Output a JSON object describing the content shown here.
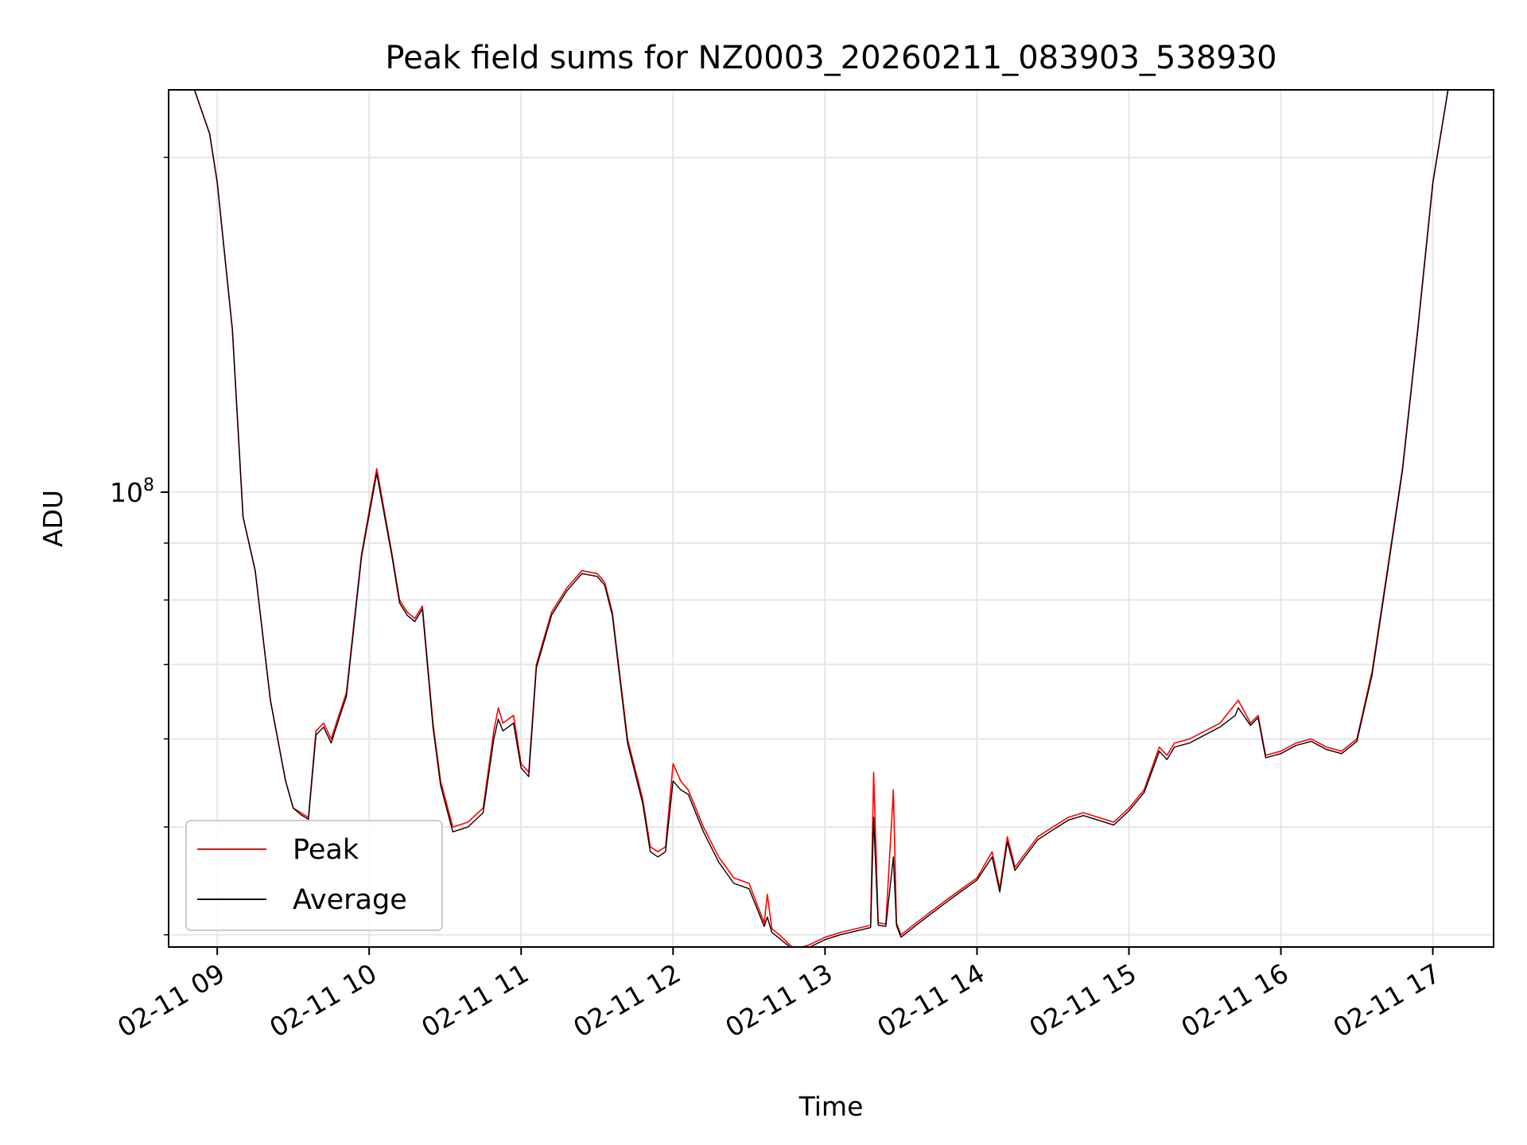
{
  "chart_data": {
    "type": "line",
    "title": "Peak field sums for NZ0003_20260211_083903_538930",
    "xlabel": "Time",
    "ylabel": "ADU",
    "yscale": "log",
    "x_tick_labels": [
      "02-11 09",
      "02-11 10",
      "02-11 11",
      "02-11 12",
      "02-11 13",
      "02-11 14",
      "02-11 15",
      "02-11 16",
      "02-11 17"
    ],
    "x_tick_hours": [
      9,
      10,
      11,
      12,
      13,
      14,
      15,
      16,
      17
    ],
    "xlim_hours": [
      8.68,
      17.4
    ],
    "y_major_tick": {
      "value": 100000000,
      "label": "10",
      "exponent": "8"
    },
    "y_minor_ticks": [
      40000000,
      50000000,
      60000000,
      70000000,
      80000000,
      90000000,
      200000000
    ],
    "ylim": [
      39000000,
      230000000
    ],
    "grid": true,
    "legend_position": "lower-left",
    "series": [
      {
        "name": "Peak",
        "color": "#ff0000",
        "x_hours": [
          8.68,
          8.85,
          8.95,
          9.0,
          9.1,
          9.17,
          9.25,
          9.35,
          9.45,
          9.5,
          9.55,
          9.6,
          9.65,
          9.7,
          9.75,
          9.8,
          9.85,
          9.95,
          10.05,
          10.15,
          10.2,
          10.25,
          10.3,
          10.35,
          10.42,
          10.47,
          10.55,
          10.65,
          10.75,
          10.82,
          10.85,
          10.88,
          10.95,
          11.0,
          11.05,
          11.1,
          11.2,
          11.3,
          11.4,
          11.5,
          11.55,
          11.6,
          11.7,
          11.8,
          11.85,
          11.9,
          11.95,
          12.0,
          12.05,
          12.1,
          12.2,
          12.3,
          12.4,
          12.5,
          12.6,
          12.62,
          12.65,
          12.7,
          12.8,
          12.9,
          13.0,
          13.1,
          13.2,
          13.3,
          13.32,
          13.35,
          13.4,
          13.45,
          13.47,
          13.5,
          13.6,
          13.7,
          13.8,
          13.9,
          14.0,
          14.1,
          14.15,
          14.2,
          14.25,
          14.3,
          14.4,
          14.5,
          14.6,
          14.7,
          14.8,
          14.9,
          15.0,
          15.1,
          15.2,
          15.25,
          15.3,
          15.4,
          15.5,
          15.6,
          15.7,
          15.72,
          15.8,
          15.85,
          15.9,
          16.0,
          16.1,
          16.2,
          16.3,
          16.4,
          16.5,
          16.6,
          16.7,
          16.8,
          16.9,
          17.0,
          17.1,
          17.4
        ],
        "y_values": [
          230000000,
          230000000,
          210000000,
          190000000,
          140000000,
          95000000,
          85000000,
          65000000,
          55000000,
          52000000,
          51500000,
          51000000,
          61000000,
          62000000,
          60000000,
          63000000,
          66000000,
          88000000,
          105000000,
          88000000,
          80000000,
          78000000,
          77000000,
          79000000,
          62000000,
          55000000,
          50000000,
          50500000,
          52000000,
          61000000,
          64000000,
          62000000,
          63000000,
          57000000,
          56000000,
          70000000,
          78000000,
          82000000,
          85000000,
          84500000,
          83000000,
          78000000,
          60000000,
          53000000,
          48000000,
          47500000,
          48000000,
          57000000,
          55000000,
          54000000,
          50000000,
          47000000,
          45000000,
          44500000,
          41000000,
          43500000,
          40500000,
          40000000,
          38800000,
          39200000,
          39800000,
          40200000,
          40500000,
          40800000,
          56000000,
          41000000,
          40900000,
          54000000,
          41000000,
          40000000,
          41000000,
          42000000,
          43000000,
          44000000,
          45000000,
          47500000,
          44000000,
          49000000,
          46000000,
          47000000,
          49000000,
          50000000,
          51000000,
          51500000,
          51000000,
          50500000,
          52000000,
          54000000,
          59000000,
          58000000,
          59500000,
          60000000,
          61000000,
          62000000,
          64500000,
          65000000,
          62000000,
          63000000,
          58000000,
          58500000,
          59500000,
          60000000,
          59000000,
          58500000,
          60000000,
          69000000,
          85000000,
          105000000,
          140000000,
          190000000,
          230000000,
          230000000
        ]
      },
      {
        "name": "Average",
        "color": "#000000",
        "x_hours": [
          8.68,
          8.85,
          8.95,
          9.0,
          9.1,
          9.17,
          9.25,
          9.35,
          9.45,
          9.5,
          9.55,
          9.6,
          9.65,
          9.7,
          9.75,
          9.8,
          9.85,
          9.95,
          10.05,
          10.15,
          10.2,
          10.25,
          10.3,
          10.35,
          10.42,
          10.47,
          10.55,
          10.65,
          10.75,
          10.82,
          10.85,
          10.88,
          10.95,
          11.0,
          11.05,
          11.1,
          11.2,
          11.3,
          11.4,
          11.5,
          11.55,
          11.6,
          11.7,
          11.8,
          11.85,
          11.9,
          11.95,
          12.0,
          12.05,
          12.1,
          12.2,
          12.3,
          12.4,
          12.5,
          12.6,
          12.62,
          12.65,
          12.7,
          12.8,
          12.9,
          13.0,
          13.1,
          13.2,
          13.3,
          13.32,
          13.35,
          13.4,
          13.45,
          13.47,
          13.5,
          13.6,
          13.7,
          13.8,
          13.9,
          14.0,
          14.1,
          14.15,
          14.2,
          14.25,
          14.3,
          14.4,
          14.5,
          14.6,
          14.7,
          14.8,
          14.9,
          15.0,
          15.1,
          15.2,
          15.25,
          15.3,
          15.4,
          15.5,
          15.6,
          15.7,
          15.72,
          15.8,
          15.85,
          15.9,
          16.0,
          16.1,
          16.2,
          16.3,
          16.4,
          16.5,
          16.6,
          16.7,
          16.8,
          16.9,
          17.0,
          17.1,
          17.4
        ],
        "y_values": [
          230000000,
          230000000,
          210000000,
          190000000,
          140000000,
          95000000,
          85000000,
          65000000,
          55000000,
          52000000,
          51300000,
          50800000,
          60500000,
          61500000,
          59500000,
          62500000,
          65500000,
          87500000,
          104000000,
          87500000,
          79500000,
          77500000,
          76500000,
          78500000,
          61500000,
          54500000,
          49500000,
          50000000,
          51500000,
          60000000,
          62500000,
          61000000,
          62000000,
          56500000,
          55500000,
          69500000,
          77500000,
          81500000,
          84500000,
          84000000,
          82500000,
          77500000,
          59500000,
          52500000,
          47500000,
          47000000,
          47500000,
          55000000,
          54000000,
          53500000,
          49500000,
          46500000,
          44500000,
          44000000,
          40700000,
          41500000,
          40200000,
          39700000,
          38700000,
          39000000,
          39600000,
          40000000,
          40300000,
          40600000,
          51000000,
          40800000,
          40700000,
          47000000,
          40800000,
          39800000,
          40800000,
          41800000,
          42800000,
          43800000,
          44800000,
          47000000,
          43700000,
          48500000,
          45700000,
          46700000,
          48700000,
          49700000,
          50700000,
          51200000,
          50700000,
          50200000,
          51700000,
          53700000,
          58500000,
          57500000,
          59000000,
          59500000,
          60500000,
          61500000,
          63000000,
          64000000,
          61700000,
          62700000,
          57700000,
          58200000,
          59200000,
          59700000,
          58700000,
          58200000,
          59700000,
          68500000,
          84500000,
          104500000,
          139500000,
          189500000,
          230000000,
          230000000
        ]
      }
    ]
  }
}
